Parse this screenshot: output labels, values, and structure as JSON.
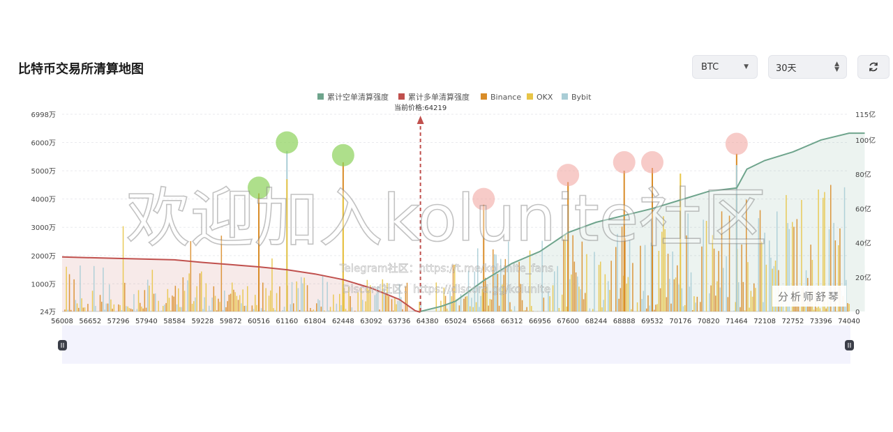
{
  "page_title": "比特币交易所清算地图",
  "controls": {
    "coin_select": {
      "value": "BTC",
      "icon": "chevron-down-icon"
    },
    "period_select": {
      "value": "30天",
      "icon": "updown-arrows-icon"
    },
    "refresh_icon": "refresh-icon"
  },
  "watermark": {
    "main": "欢迎加入kolunite社区",
    "telegram": "Telegram社区：https://t.me/kolunite_fans",
    "discord": "Discord社区：https://discord.gg/kolunite",
    "signature": "分析师舒琴"
  },
  "chart_data": {
    "type": "bar",
    "legend": [
      {
        "name": "累计空单清算强度",
        "color": "#6ea48c"
      },
      {
        "name": "累计多单清算强度",
        "color": "#c0504d"
      },
      {
        "name": "Binance",
        "color": "#d98c28"
      },
      {
        "name": "OKX",
        "color": "#e8c547"
      },
      {
        "name": "Bybit",
        "color": "#a9cdd6"
      }
    ],
    "current_price_label": "当前价格:64219",
    "current_price": 64219,
    "x_ticks": [
      "56008",
      "56652",
      "57296",
      "57940",
      "58584",
      "59228",
      "59872",
      "60516",
      "61160",
      "61804",
      "62448",
      "63092",
      "63736",
      "64380",
      "65024",
      "65668",
      "66312",
      "66956",
      "67600",
      "68244",
      "68888",
      "69532",
      "70176",
      "70820",
      "71464",
      "72108",
      "72752",
      "73396",
      "74040"
    ],
    "y_left_ticks": [
      "24万",
      "1000万",
      "2000万",
      "3000万",
      "4000万",
      "5000万",
      "6000万",
      "6998万"
    ],
    "y_right_ticks": [
      "0",
      "20亿",
      "40亿",
      "60亿",
      "80亿",
      "100亿",
      "115亿"
    ],
    "y_left_range": [
      24,
      6998
    ],
    "y_right_range": [
      0,
      115
    ],
    "cumulative_long": [
      [
        56008,
        1950
      ],
      [
        57296,
        1900
      ],
      [
        58584,
        1850
      ],
      [
        59228,
        1760
      ],
      [
        59872,
        1680
      ],
      [
        60516,
        1600
      ],
      [
        61160,
        1500
      ],
      [
        61804,
        1350
      ],
      [
        62448,
        1150
      ],
      [
        63092,
        850
      ],
      [
        63736,
        450
      ],
      [
        64100,
        50
      ],
      [
        64219,
        0
      ]
    ],
    "cumulative_short": [
      [
        64219,
        0
      ],
      [
        64700,
        3
      ],
      [
        65024,
        6
      ],
      [
        65668,
        18
      ],
      [
        66312,
        28
      ],
      [
        66956,
        35
      ],
      [
        67600,
        46
      ],
      [
        68244,
        52
      ],
      [
        68888,
        56
      ],
      [
        69532,
        60
      ],
      [
        70176,
        65
      ],
      [
        70820,
        70
      ],
      [
        71464,
        72
      ],
      [
        71700,
        83
      ],
      [
        72108,
        88
      ],
      [
        72752,
        93
      ],
      [
        73396,
        100
      ],
      [
        74040,
        104
      ],
      [
        74400,
        104
      ]
    ],
    "highlights_long": [
      {
        "x": 60516,
        "y": 4400
      },
      {
        "x": 61160,
        "y": 6000
      },
      {
        "x": 62448,
        "y": 5550
      }
    ],
    "highlights_short": [
      {
        "x": 65668,
        "y": 4000
      },
      {
        "x": 67600,
        "y": 4850
      },
      {
        "x": 68888,
        "y": 5300
      },
      {
        "x": 69532,
        "y": 5300
      },
      {
        "x": 71464,
        "y": 5950
      }
    ],
    "notable_bars": [
      {
        "x": 60516,
        "y": 4200,
        "exchange": "Binance"
      },
      {
        "x": 61160,
        "y": 5700,
        "exchange": "Bybit"
      },
      {
        "x": 61160,
        "y": 4700,
        "exchange": "OKX"
      },
      {
        "x": 62448,
        "y": 5300,
        "exchange": "Binance"
      },
      {
        "x": 62448,
        "y": 4200,
        "exchange": "OKX"
      },
      {
        "x": 65668,
        "y": 3800,
        "exchange": "Binance"
      },
      {
        "x": 67600,
        "y": 4600,
        "exchange": "Binance"
      },
      {
        "x": 68888,
        "y": 5000,
        "exchange": "Binance"
      },
      {
        "x": 69532,
        "y": 5100,
        "exchange": "Binance"
      },
      {
        "x": 70176,
        "y": 4900,
        "exchange": "OKX"
      },
      {
        "x": 71464,
        "y": 5600,
        "exchange": "Binance"
      },
      {
        "x": 71464,
        "y": 5200,
        "exchange": "Bybit"
      }
    ]
  }
}
